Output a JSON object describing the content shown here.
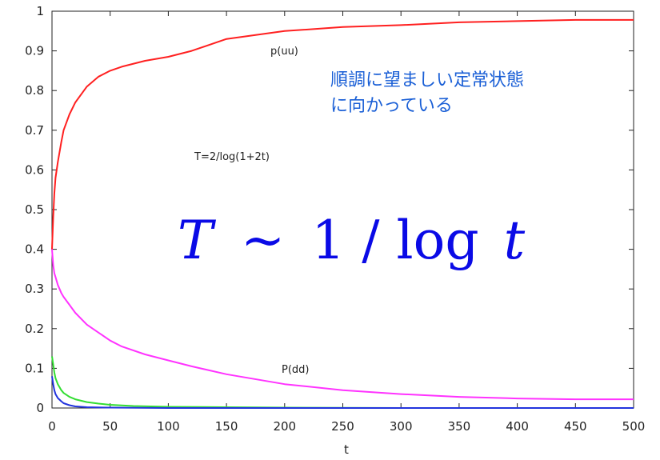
{
  "chart_data": {
    "type": "line",
    "title": "",
    "xlabel": "t",
    "ylabel": "",
    "xlim": [
      0,
      500
    ],
    "ylim": [
      0,
      1
    ],
    "xticks": [
      "0",
      "50",
      "100",
      "150",
      "200",
      "250",
      "300",
      "350",
      "400",
      "450",
      "500"
    ],
    "yticks": [
      "0",
      "0.1",
      "0.2",
      "0.3",
      "0.4",
      "0.5",
      "0.6",
      "0.7",
      "0.8",
      "0.9",
      "1"
    ],
    "grid": false,
    "legend": "none",
    "annotations": {
      "puu": "p(uu)",
      "pdd": "P(dd)",
      "schedule": "T=2/log(1+2t)",
      "jp_line1": "順調に望ましい定常状態",
      "jp_line2": "に向かっている",
      "formula_T": "T",
      "formula_sim": "~",
      "formula_rest": "1 / log",
      "formula_t": "t"
    },
    "colors": {
      "puu": "#ff2020",
      "pdd": "#ff33ff",
      "green": "#33dd33",
      "blue": "#2233dd",
      "jp_text": "#1a5fd6",
      "formula": "#0a0ae6"
    },
    "series": [
      {
        "color": "#ff2020",
        "x": [
          0,
          1,
          2,
          3,
          5,
          8,
          10,
          15,
          20,
          30,
          40,
          50,
          60,
          80,
          100,
          120,
          150,
          200,
          250,
          300,
          350,
          400,
          450,
          500
        ],
        "y": [
          0.4,
          0.48,
          0.54,
          0.58,
          0.62,
          0.67,
          0.7,
          0.74,
          0.77,
          0.81,
          0.835,
          0.85,
          0.86,
          0.875,
          0.885,
          0.9,
          0.93,
          0.95,
          0.96,
          0.965,
          0.972,
          0.975,
          0.978,
          0.978
        ]
      },
      {
        "color": "#ff33ff",
        "x": [
          0,
          1,
          2,
          3,
          5,
          8,
          10,
          15,
          20,
          30,
          40,
          50,
          60,
          80,
          100,
          120,
          150,
          200,
          250,
          300,
          350,
          400,
          450,
          500
        ],
        "y": [
          0.4,
          0.36,
          0.34,
          0.33,
          0.31,
          0.29,
          0.28,
          0.26,
          0.24,
          0.21,
          0.19,
          0.17,
          0.155,
          0.135,
          0.12,
          0.105,
          0.085,
          0.06,
          0.045,
          0.035,
          0.028,
          0.024,
          0.022,
          0.022
        ]
      },
      {
        "color": "#33dd33",
        "x": [
          0,
          1,
          2,
          3,
          5,
          8,
          10,
          15,
          20,
          30,
          40,
          50,
          70,
          100,
          150,
          200,
          300,
          400,
          500
        ],
        "y": [
          0.13,
          0.11,
          0.09,
          0.075,
          0.06,
          0.045,
          0.038,
          0.028,
          0.022,
          0.015,
          0.011,
          0.008,
          0.005,
          0.003,
          0.002,
          0.001,
          0.0,
          0.0,
          0.0
        ]
      },
      {
        "color": "#2233dd",
        "x": [
          0,
          1,
          2,
          3,
          5,
          8,
          10,
          15,
          20,
          30,
          50,
          100,
          200,
          300,
          400,
          500
        ],
        "y": [
          0.08,
          0.06,
          0.045,
          0.035,
          0.025,
          0.017,
          0.012,
          0.007,
          0.004,
          0.002,
          0.001,
          0.0,
          0.0,
          0.0,
          0.0,
          0.0
        ]
      }
    ]
  }
}
